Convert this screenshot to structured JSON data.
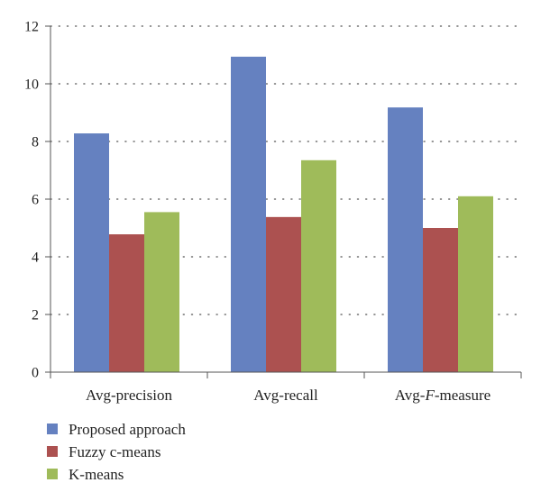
{
  "chart_data": {
    "type": "bar",
    "categories": [
      "Avg-precision",
      "Avg-recall",
      "Avg-F-measure"
    ],
    "category_labels": [
      {
        "parts": [
          {
            "text": "Avg-precision",
            "italic": false
          }
        ]
      },
      {
        "parts": [
          {
            "text": "Avg-recall",
            "italic": false
          }
        ]
      },
      {
        "parts": [
          {
            "text": "Avg-",
            "italic": false
          },
          {
            "text": "F",
            "italic": true
          },
          {
            "text": "-measure",
            "italic": false
          }
        ]
      }
    ],
    "series": [
      {
        "name": "Proposed approach",
        "color": "#6581c0",
        "values": [
          8.28,
          10.94,
          9.18
        ]
      },
      {
        "name": "Fuzzy c-means",
        "color": "#ac5150",
        "values": [
          4.78,
          5.38,
          5.0
        ]
      },
      {
        "name": "K-means",
        "color": "#9fbb5a",
        "values": [
          5.55,
          7.35,
          6.1
        ]
      }
    ],
    "ylim": [
      0,
      12
    ],
    "yticks": [
      "0",
      "2",
      "4",
      "6",
      "8",
      "10",
      "12"
    ],
    "grid": true,
    "legend_position": "bottom-left"
  }
}
